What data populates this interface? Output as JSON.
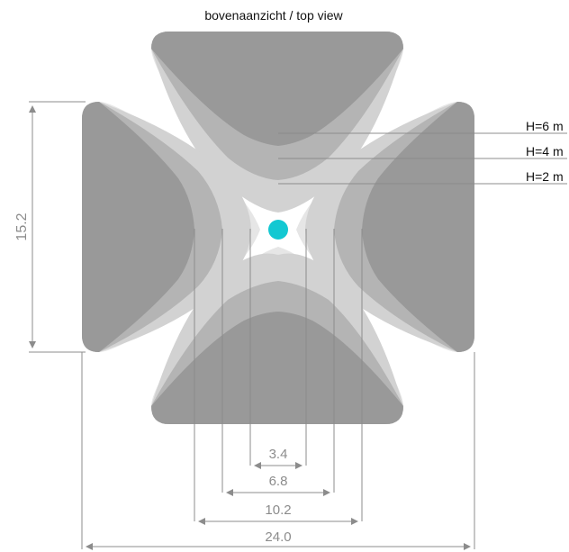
{
  "title": "bovenaanzicht / top view",
  "labels": {
    "h6": "H=6 m",
    "h4": "H=4 m",
    "h2": "H=2 m"
  },
  "dimensions": {
    "vertical_left": "15.2",
    "width_34": "3.4",
    "width_68": "6.8",
    "width_102": "10.2",
    "width_240": "24.0"
  },
  "colors": {
    "dark": "#999999",
    "mid": "#b4b4b4",
    "light": "#d2d2d2",
    "lighter": "#e6e6e6",
    "dimension": "#8c8c8c",
    "center": "#13c8d2",
    "background": "#ffffff"
  }
}
